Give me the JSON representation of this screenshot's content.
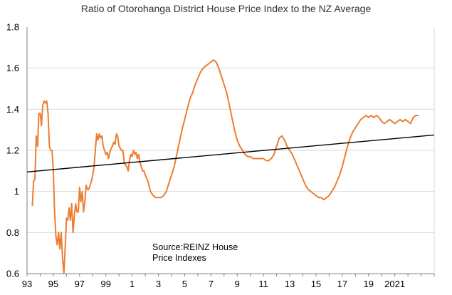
{
  "chart_data": {
    "type": "line",
    "title": "Ratio of Otorohanga District House Price Index to the NZ Average",
    "xlabel": "",
    "ylabel": "",
    "annotation": [
      "Source:REINZ House",
      "Price Indexes"
    ],
    "ylim": [
      0.6,
      1.8
    ],
    "yticks": [
      "0.6",
      "0.8",
      "1",
      "1.2",
      "1.4",
      "1.6",
      "1.8"
    ],
    "xlim": [
      1993,
      2024
    ],
    "xticks": [
      {
        "x": 1993,
        "label": "93"
      },
      {
        "x": 1995,
        "label": "95"
      },
      {
        "x": 1997,
        "label": "97"
      },
      {
        "x": 1999,
        "label": "99"
      },
      {
        "x": 2001,
        "label": "1"
      },
      {
        "x": 2003,
        "label": "3"
      },
      {
        "x": 2005,
        "label": "5"
      },
      {
        "x": 2007,
        "label": "7"
      },
      {
        "x": 2009,
        "label": "9"
      },
      {
        "x": 2011,
        "label": "11"
      },
      {
        "x": 2013,
        "label": "13"
      },
      {
        "x": 2015,
        "label": "15"
      },
      {
        "x": 2017,
        "label": "17"
      },
      {
        "x": 2019,
        "label": "19"
      },
      {
        "x": 2021,
        "label": "2021"
      }
    ],
    "grid": "horizontal",
    "colors": {
      "ratio": "#ED7D31",
      "trend": "#000000",
      "grid": "#D9D9D9",
      "axis": "#808080"
    },
    "series": [
      {
        "values": [
          [
            1993.4,
            0.93
          ],
          [
            1993.5,
            1.05
          ],
          [
            1993.6,
            1.06
          ],
          [
            1993.7,
            1.27
          ],
          [
            1993.8,
            1.22
          ],
          [
            1993.9,
            1.38
          ],
          [
            1994.0,
            1.38
          ],
          [
            1994.1,
            1.32
          ],
          [
            1994.2,
            1.42
          ],
          [
            1994.3,
            1.44
          ],
          [
            1994.4,
            1.43
          ],
          [
            1994.5,
            1.44
          ],
          [
            1994.6,
            1.38
          ],
          [
            1994.7,
            1.22
          ],
          [
            1994.8,
            1.2
          ],
          [
            1994.9,
            1.2
          ],
          [
            1995.0,
            1.1
          ],
          [
            1995.1,
            0.9
          ],
          [
            1995.2,
            0.78
          ],
          [
            1995.3,
            0.74
          ],
          [
            1995.4,
            0.8
          ],
          [
            1995.5,
            0.72
          ],
          [
            1995.6,
            0.8
          ],
          [
            1995.7,
            0.68
          ],
          [
            1995.8,
            0.6
          ],
          [
            1995.9,
            0.72
          ],
          [
            1996.0,
            0.87
          ],
          [
            1996.1,
            0.86
          ],
          [
            1996.2,
            0.92
          ],
          [
            1996.3,
            0.86
          ],
          [
            1996.4,
            0.94
          ],
          [
            1996.5,
            0.8
          ],
          [
            1996.6,
            0.88
          ],
          [
            1996.7,
            0.94
          ],
          [
            1996.8,
            0.9
          ],
          [
            1996.9,
            0.9
          ],
          [
            1997.0,
            1.02
          ],
          [
            1997.1,
            0.95
          ],
          [
            1997.2,
            1.0
          ],
          [
            1997.3,
            0.9
          ],
          [
            1997.4,
            0.95
          ],
          [
            1997.5,
            1.03
          ],
          [
            1997.6,
            1.01
          ],
          [
            1997.7,
            1.01
          ],
          [
            1997.8,
            1.03
          ],
          [
            1997.9,
            1.05
          ],
          [
            1998.0,
            1.08
          ],
          [
            1998.1,
            1.12
          ],
          [
            1998.2,
            1.2
          ],
          [
            1998.3,
            1.28
          ],
          [
            1998.4,
            1.25
          ],
          [
            1998.5,
            1.28
          ],
          [
            1998.6,
            1.26
          ],
          [
            1998.7,
            1.27
          ],
          [
            1998.8,
            1.22
          ],
          [
            1998.9,
            1.2
          ],
          [
            1999.0,
            1.18
          ],
          [
            1999.1,
            1.19
          ],
          [
            1999.2,
            1.16
          ],
          [
            1999.3,
            1.19
          ],
          [
            1999.4,
            1.21
          ],
          [
            1999.5,
            1.22
          ],
          [
            1999.6,
            1.24
          ],
          [
            1999.7,
            1.23
          ],
          [
            1999.8,
            1.28
          ],
          [
            1999.9,
            1.27
          ],
          [
            2000.0,
            1.22
          ],
          [
            2000.1,
            1.21
          ],
          [
            2000.2,
            1.2
          ],
          [
            2000.3,
            1.2
          ],
          [
            2000.4,
            1.14
          ],
          [
            2000.5,
            1.13
          ],
          [
            2000.6,
            1.12
          ],
          [
            2000.7,
            1.1
          ],
          [
            2000.8,
            1.15
          ],
          [
            2000.9,
            1.18
          ],
          [
            2001.0,
            1.17
          ],
          [
            2001.1,
            1.2
          ],
          [
            2001.2,
            1.18
          ],
          [
            2001.3,
            1.19
          ],
          [
            2001.4,
            1.16
          ],
          [
            2001.5,
            1.18
          ],
          [
            2001.6,
            1.14
          ],
          [
            2001.7,
            1.12
          ],
          [
            2001.8,
            1.1
          ],
          [
            2001.9,
            1.1
          ],
          [
            2002.0,
            1.08
          ],
          [
            2002.2,
            1.05
          ],
          [
            2002.4,
            1.0
          ],
          [
            2002.6,
            0.98
          ],
          [
            2002.8,
            0.97
          ],
          [
            2003.0,
            0.97
          ],
          [
            2003.2,
            0.97
          ],
          [
            2003.4,
            0.98
          ],
          [
            2003.6,
            1.0
          ],
          [
            2003.8,
            1.04
          ],
          [
            2004.0,
            1.08
          ],
          [
            2004.2,
            1.12
          ],
          [
            2004.4,
            1.18
          ],
          [
            2004.6,
            1.24
          ],
          [
            2004.8,
            1.3
          ],
          [
            2005.0,
            1.35
          ],
          [
            2005.2,
            1.4
          ],
          [
            2005.4,
            1.45
          ],
          [
            2005.6,
            1.48
          ],
          [
            2005.8,
            1.52
          ],
          [
            2006.0,
            1.55
          ],
          [
            2006.2,
            1.58
          ],
          [
            2006.4,
            1.6
          ],
          [
            2006.6,
            1.61
          ],
          [
            2006.8,
            1.62
          ],
          [
            2007.0,
            1.63
          ],
          [
            2007.2,
            1.64
          ],
          [
            2007.4,
            1.63
          ],
          [
            2007.6,
            1.6
          ],
          [
            2007.8,
            1.56
          ],
          [
            2008.0,
            1.52
          ],
          [
            2008.2,
            1.48
          ],
          [
            2008.4,
            1.42
          ],
          [
            2008.6,
            1.36
          ],
          [
            2008.8,
            1.3
          ],
          [
            2009.0,
            1.25
          ],
          [
            2009.2,
            1.22
          ],
          [
            2009.4,
            1.2
          ],
          [
            2009.6,
            1.18
          ],
          [
            2009.8,
            1.17
          ],
          [
            2010.0,
            1.17
          ],
          [
            2010.2,
            1.16
          ],
          [
            2010.4,
            1.16
          ],
          [
            2010.6,
            1.16
          ],
          [
            2010.8,
            1.16
          ],
          [
            2011.0,
            1.16
          ],
          [
            2011.2,
            1.15
          ],
          [
            2011.4,
            1.15
          ],
          [
            2011.6,
            1.16
          ],
          [
            2011.8,
            1.18
          ],
          [
            2012.0,
            1.22
          ],
          [
            2012.2,
            1.26
          ],
          [
            2012.4,
            1.27
          ],
          [
            2012.6,
            1.25
          ],
          [
            2012.8,
            1.22
          ],
          [
            2013.0,
            1.2
          ],
          [
            2013.2,
            1.18
          ],
          [
            2013.4,
            1.15
          ],
          [
            2013.6,
            1.12
          ],
          [
            2013.8,
            1.09
          ],
          [
            2014.0,
            1.06
          ],
          [
            2014.2,
            1.03
          ],
          [
            2014.4,
            1.01
          ],
          [
            2014.6,
            1.0
          ],
          [
            2014.8,
            0.99
          ],
          [
            2015.0,
            0.98
          ],
          [
            2015.2,
            0.97
          ],
          [
            2015.4,
            0.97
          ],
          [
            2015.6,
            0.96
          ],
          [
            2015.8,
            0.97
          ],
          [
            2016.0,
            0.98
          ],
          [
            2016.2,
            1.0
          ],
          [
            2016.4,
            1.02
          ],
          [
            2016.6,
            1.05
          ],
          [
            2016.8,
            1.08
          ],
          [
            2017.0,
            1.12
          ],
          [
            2017.2,
            1.17
          ],
          [
            2017.4,
            1.22
          ],
          [
            2017.6,
            1.26
          ],
          [
            2017.8,
            1.29
          ],
          [
            2018.0,
            1.31
          ],
          [
            2018.2,
            1.33
          ],
          [
            2018.4,
            1.35
          ],
          [
            2018.6,
            1.36
          ],
          [
            2018.8,
            1.37
          ],
          [
            2019.0,
            1.36
          ],
          [
            2019.2,
            1.37
          ],
          [
            2019.4,
            1.36
          ],
          [
            2019.6,
            1.37
          ],
          [
            2019.8,
            1.36
          ],
          [
            2020.0,
            1.34
          ],
          [
            2020.2,
            1.33
          ],
          [
            2020.4,
            1.34
          ],
          [
            2020.6,
            1.35
          ],
          [
            2020.8,
            1.34
          ],
          [
            2021.0,
            1.33
          ],
          [
            2021.2,
            1.34
          ],
          [
            2021.4,
            1.35
          ],
          [
            2021.6,
            1.34
          ],
          [
            2021.8,
            1.35
          ],
          [
            2022.0,
            1.34
          ],
          [
            2022.2,
            1.33
          ],
          [
            2022.4,
            1.36
          ],
          [
            2022.6,
            1.37
          ],
          [
            2022.8,
            1.37
          ]
        ]
      },
      {
        "values": [
          [
            1993.0,
            1.095
          ],
          [
            2024.0,
            1.275
          ]
        ]
      }
    ]
  }
}
